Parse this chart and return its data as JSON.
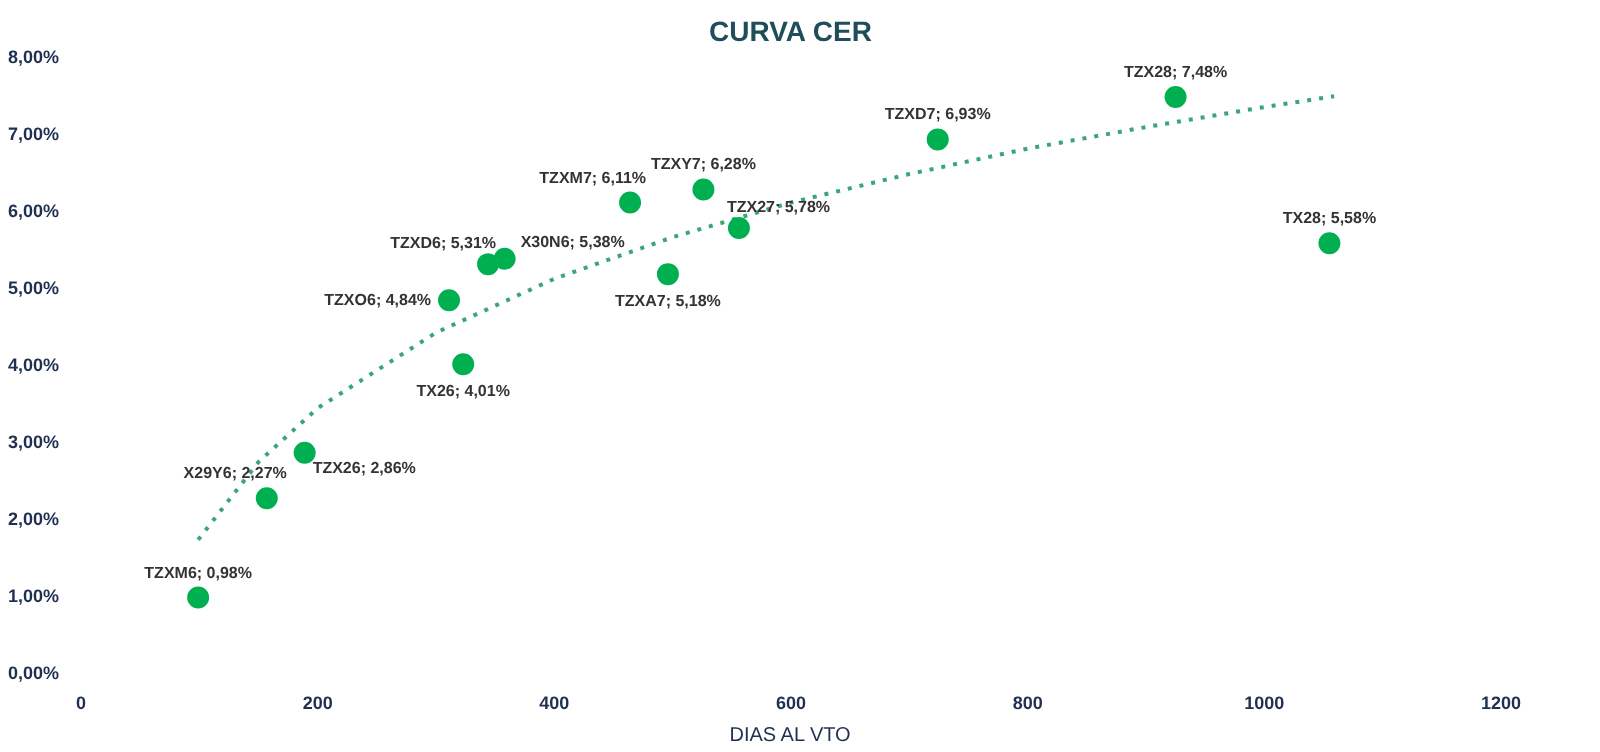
{
  "chart_data": {
    "type": "scatter",
    "title": "CURVA CER",
    "xlabel": "DIAS AL VTO",
    "xlim": [
      0,
      1200
    ],
    "xticks": [
      0,
      200,
      400,
      600,
      800,
      1000,
      1200
    ],
    "ylim": [
      0,
      8
    ],
    "yticks": [
      {
        "value": 0,
        "label": "0,00%"
      },
      {
        "value": 1,
        "label": "1,00%"
      },
      {
        "value": 2,
        "label": "2,00%"
      },
      {
        "value": 3,
        "label": "3,00%"
      },
      {
        "value": 4,
        "label": "4,00%"
      },
      {
        "value": 5,
        "label": "5,00%"
      },
      {
        "value": 6,
        "label": "6,00%"
      },
      {
        "value": 7,
        "label": "7,00%"
      },
      {
        "value": 8,
        "label": "8,00%"
      }
    ],
    "grid": false,
    "marker": "circle",
    "series": [
      {
        "color": "#00b050",
        "x": [
          99,
          157,
          189,
          323,
          311,
          344,
          358,
          464,
          526,
          496,
          556,
          724,
          925,
          1055
        ],
        "values": [
          0.98,
          2.27,
          2.86,
          4.01,
          4.84,
          5.31,
          5.38,
          6.11,
          6.28,
          5.18,
          5.78,
          6.93,
          7.48,
          5.58
        ],
        "value_labels": [
          "TZXM6; 0,98%",
          "X29Y6; 2,27%",
          "TZX26; 2,86%",
          "TX26; 4,01%",
          "TZXO6; 4,84%",
          "TZXD6; 5,31%",
          "X30N6; 5,38%",
          "TZXM7; 6,11%",
          "TZXY7; 6,28%",
          "TZXA7; 5,18%",
          "TZX27; 5,78%",
          "TZXD7; 6,93%",
          "TZX28; 7,48%",
          "TX28; 5,58%"
        ]
      },
      {
        "type": "line",
        "color": "#3aa57a",
        "line_style": "dotted",
        "marker": "none",
        "x": [
          99,
          150,
          200,
          300,
          400,
          500,
          600,
          700,
          800,
          900,
          1000,
          1059
        ],
        "values": [
          1.73,
          2.74,
          3.44,
          4.42,
          5.12,
          5.66,
          6.11,
          6.48,
          6.81,
          7.09,
          7.35,
          7.49
        ]
      }
    ]
  }
}
